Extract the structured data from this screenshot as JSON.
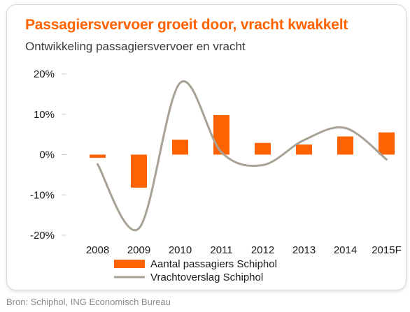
{
  "title": "Passagiersvervoer groeit door, vracht kwakkelt",
  "subtitle": "Ontwikkeling passagiersvervoer en vracht",
  "source": "Bron: Schiphol, ING Economisch Bureau",
  "chart_data": {
    "type": "bar",
    "categories": [
      "2008",
      "2009",
      "2010",
      "2011",
      "2012",
      "2013",
      "2014",
      "2015F"
    ],
    "series": [
      {
        "name": "Aantal passagiers Schiphol",
        "type": "bar",
        "color": "#ff6200",
        "values": [
          -0.8,
          -8.2,
          3.7,
          9.8,
          2.9,
          2.5,
          4.5,
          5.5
        ]
      },
      {
        "name": "Vrachtoverslag Schiphol",
        "type": "line",
        "color": "#a8a196",
        "values": [
          -2.4,
          -18.3,
          17.8,
          0.6,
          -2.6,
          3.6,
          6.6,
          -1.2
        ]
      }
    ],
    "yticks": [
      "20%",
      "10%",
      "0%",
      "-10%",
      "-20%"
    ],
    "ylim": [
      -20,
      20
    ],
    "unit": "%",
    "grid": false,
    "legend": "bottom"
  }
}
